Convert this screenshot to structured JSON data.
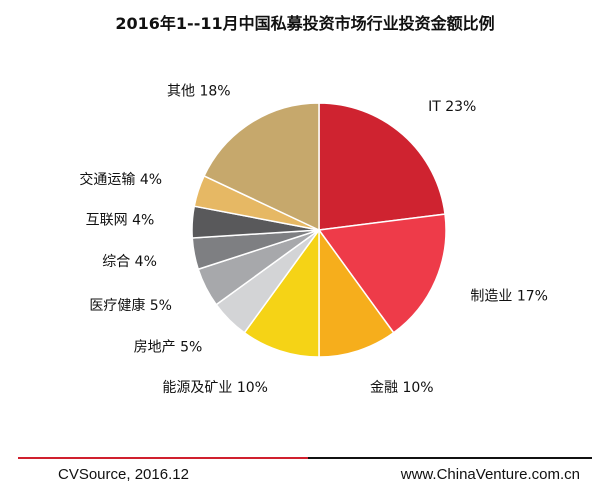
{
  "title": "2016年1--11月中国私募投资市场行业投资金额比例",
  "footer": {
    "source": "CVSource, 2016.12",
    "website": "www.ChinaVenture.com.cn"
  },
  "chart_data": {
    "type": "pie",
    "title": "2016年1--11月中国私募投资市场行业投资金额比例",
    "slices": [
      {
        "label": "IT 23%",
        "value": 23,
        "color": "#cf2330"
      },
      {
        "label": "制造业 17%",
        "value": 17,
        "color": "#ee3b49"
      },
      {
        "label": "金融 10%",
        "value": 10,
        "color": "#f6ae1c"
      },
      {
        "label": "能源及矿业 10%",
        "value": 10,
        "color": "#f5d316"
      },
      {
        "label": "房地产 5%",
        "value": 5,
        "color": "#d3d4d6"
      },
      {
        "label": "医疗健康 5%",
        "value": 5,
        "color": "#a7a8ab"
      },
      {
        "label": "综合 4%",
        "value": 4,
        "color": "#7e7f82"
      },
      {
        "label": "互联网 4%",
        "value": 4,
        "color": "#59595b"
      },
      {
        "label": "交通运输 4%",
        "value": 4,
        "color": "#e6b864"
      },
      {
        "label": "其他 18%",
        "value": 18,
        "color": "#c6a86c"
      }
    ]
  }
}
